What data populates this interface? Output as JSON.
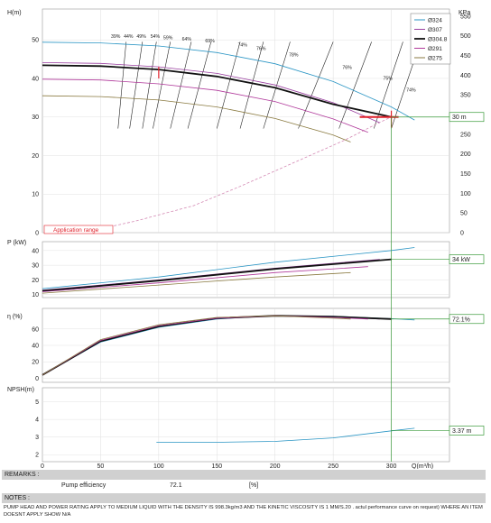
{
  "chart_data": [
    {
      "type": "line",
      "panel": "head",
      "ylabel": "H(m)",
      "ylabel_right": "KPa",
      "ylim": [
        0,
        55
      ],
      "yticks": [
        0,
        10,
        20,
        30,
        40,
        50
      ],
      "yticks_right": [
        0,
        50,
        100,
        150,
        200,
        250,
        300,
        350,
        400,
        450,
        500,
        550
      ],
      "xlim": [
        0,
        320
      ],
      "xticks": [
        0,
        50,
        100,
        150,
        200,
        250,
        300
      ],
      "grid": true,
      "legend_position": "top-right",
      "series": [
        {
          "name": "Ø324",
          "color": "#2a95c4",
          "points": [
            [
              0,
              49.4
            ],
            [
              50,
              49.2
            ],
            [
              100,
              48.4
            ],
            [
              150,
              46.7
            ],
            [
              200,
              43.8
            ],
            [
              250,
              39.2
            ],
            [
              300,
              32.6
            ],
            [
              320,
              29.2
            ]
          ]
        },
        {
          "name": "Ø307",
          "color": "#9a3fa0",
          "points": [
            [
              0,
              44.1
            ],
            [
              50,
              43.9
            ],
            [
              100,
              43.0
            ],
            [
              150,
              41.3
            ],
            [
              200,
              38.3
            ],
            [
              250,
              33.7
            ],
            [
              290,
              28.5
            ]
          ]
        },
        {
          "name": "Ø304.8",
          "color": "#111111",
          "bold": true,
          "points": [
            [
              0,
              43.4
            ],
            [
              50,
              43.2
            ],
            [
              100,
              42.3
            ],
            [
              150,
              40.5
            ],
            [
              200,
              37.6
            ],
            [
              250,
              33.3
            ],
            [
              300,
              30.0
            ]
          ]
        },
        {
          "name": "Ø291",
          "color": "#b0389a",
          "points": [
            [
              0,
              39.8
            ],
            [
              50,
              39.6
            ],
            [
              100,
              38.6
            ],
            [
              150,
              36.9
            ],
            [
              200,
              34.0
            ],
            [
              250,
              29.5
            ],
            [
              280,
              26.0
            ]
          ]
        },
        {
          "name": "Ø275",
          "color": "#8a7a40",
          "points": [
            [
              0,
              35.5
            ],
            [
              50,
              35.3
            ],
            [
              100,
              34.4
            ],
            [
              150,
              32.6
            ],
            [
              200,
              29.6
            ],
            [
              250,
              25.3
            ],
            [
              265,
              23.5
            ]
          ]
        }
      ],
      "efficiency_labels": [
        "39%",
        "44%",
        "49%",
        "54%",
        "59%",
        "64%",
        "69%",
        "74%",
        "76%",
        "78%",
        "76%",
        "75%",
        "74%"
      ],
      "annotations": [
        "Application range",
        "30 m"
      ],
      "operating_point": [
        300,
        30
      ]
    },
    {
      "type": "line",
      "panel": "power",
      "ylabel": "P (kW)",
      "ylim": [
        10,
        45
      ],
      "yticks": [
        10,
        20,
        30,
        40
      ],
      "xlim": [
        0,
        320
      ],
      "series": [
        {
          "name": "Ø324",
          "color": "#2a95c4",
          "points": [
            [
              0,
              14
            ],
            [
              100,
              22
            ],
            [
              200,
              32
            ],
            [
              300,
              40
            ],
            [
              320,
              42
            ]
          ]
        },
        {
          "name": "Ø307",
          "color": "#9a3fa0",
          "points": [
            [
              0,
              13
            ],
            [
              100,
              20
            ],
            [
              200,
              28
            ],
            [
              290,
              34
            ]
          ]
        },
        {
          "name": "Ø304.8",
          "color": "#111111",
          "bold": true,
          "points": [
            [
              0,
              12.5
            ],
            [
              100,
              19.5
            ],
            [
              200,
              27.5
            ],
            [
              300,
              34
            ]
          ]
        },
        {
          "name": "Ø291",
          "color": "#b0389a",
          "points": [
            [
              0,
              12
            ],
            [
              100,
              18
            ],
            [
              200,
              25
            ],
            [
              280,
              29
            ]
          ]
        },
        {
          "name": "Ø275",
          "color": "#8a7a40",
          "points": [
            [
              0,
              11
            ],
            [
              100,
              16.5
            ],
            [
              200,
              22
            ],
            [
              265,
              25
            ]
          ]
        }
      ],
      "annotations": [
        "34 kW"
      ]
    },
    {
      "type": "line",
      "panel": "efficiency",
      "ylabel": "η (%)",
      "ylim": [
        0,
        80
      ],
      "yticks": [
        0,
        20,
        40,
        60
      ],
      "xlim": [
        0,
        320
      ],
      "series": [
        {
          "name": "Ø324",
          "color": "#2a95c4",
          "points": [
            [
              0,
              4
            ],
            [
              50,
              44
            ],
            [
              100,
              62
            ],
            [
              150,
              72
            ],
            [
              200,
              76
            ],
            [
              250,
              75.5
            ],
            [
              300,
              72.5
            ],
            [
              320,
              71
            ]
          ]
        },
        {
          "name": "Ø307",
          "color": "#9a3fa0",
          "points": [
            [
              0,
              4
            ],
            [
              50,
              45
            ],
            [
              100,
              63
            ],
            [
              150,
              72.5
            ],
            [
              200,
              76
            ],
            [
              250,
              75
            ],
            [
              290,
              72
            ]
          ]
        },
        {
          "name": "Ø304.8",
          "color": "#111111",
          "bold": true,
          "points": [
            [
              0,
              4
            ],
            [
              50,
              45
            ],
            [
              100,
              63
            ],
            [
              150,
              73
            ],
            [
              200,
              76
            ],
            [
              250,
              75
            ],
            [
              300,
              72
            ]
          ]
        },
        {
          "name": "Ø291",
          "color": "#b0389a",
          "points": [
            [
              0,
              4
            ],
            [
              50,
              46
            ],
            [
              100,
              64
            ],
            [
              150,
              73
            ],
            [
              200,
              76
            ],
            [
              250,
              74
            ],
            [
              280,
              72
            ]
          ]
        },
        {
          "name": "Ø275",
          "color": "#8a7a40",
          "points": [
            [
              0,
              4
            ],
            [
              50,
              47
            ],
            [
              100,
              65
            ],
            [
              150,
              74
            ],
            [
              200,
              76
            ],
            [
              250,
              73
            ],
            [
              265,
              72
            ]
          ]
        }
      ],
      "annotations": [
        "72.1%"
      ]
    },
    {
      "type": "line",
      "panel": "npsh",
      "ylabel": "NPSH(m)",
      "ylim": [
        2,
        5.5
      ],
      "yticks": [
        2,
        3,
        4,
        5
      ],
      "xlabel": "Q(m³/h)",
      "xlim": [
        0,
        320
      ],
      "xticks": [
        0,
        50,
        100,
        150,
        200,
        250,
        300
      ],
      "series": [
        {
          "name": "NPSH",
          "color": "#2a95c4",
          "points": [
            [
              98,
              2.7
            ],
            [
              150,
              2.7
            ],
            [
              200,
              2.75
            ],
            [
              250,
              2.95
            ],
            [
              300,
              3.35
            ],
            [
              320,
              3.5
            ]
          ]
        }
      ],
      "annotations": [
        "3.37 m"
      ]
    }
  ],
  "legend": [
    {
      "label": "Ø324",
      "color": "#2a95c4"
    },
    {
      "label": "Ø307",
      "color": "#9a3fa0"
    },
    {
      "label": "Ø304.8",
      "color": "#111111"
    },
    {
      "label": "Ø291",
      "color": "#b0389a"
    },
    {
      "label": "Ø275",
      "color": "#8a7a40"
    }
  ],
  "labels": {
    "head_axis": "H(m)",
    "kpa_axis": "KPa",
    "power_axis": "P (kW)",
    "eff_axis": "η (%)",
    "npsh_axis": "NPSH(m)",
    "x_axis": "Q(m³/h)",
    "app_range": "Application range",
    "head_value": "30 m",
    "power_value": "34 kW",
    "eff_value": "72.1%",
    "npsh_value": "3.37 m"
  },
  "remarks": {
    "title": "REMARKS :",
    "eff_label": "Pump efficiency",
    "eff_value": "72.1",
    "eff_unit": "[%]"
  },
  "notes": {
    "title": "NOTES :",
    "text": "PUMP HEAD AND POWER RATING APPLY TO MEDIUM LIQUID WITH THE DENSITY IS 998.3kg/m3 AND THE KINETIC VISCOSITY IS 1 MM/S.20 . actul performance curve on request) WHERE AN ITEM DOESNT APPLY SHOW N/A"
  }
}
